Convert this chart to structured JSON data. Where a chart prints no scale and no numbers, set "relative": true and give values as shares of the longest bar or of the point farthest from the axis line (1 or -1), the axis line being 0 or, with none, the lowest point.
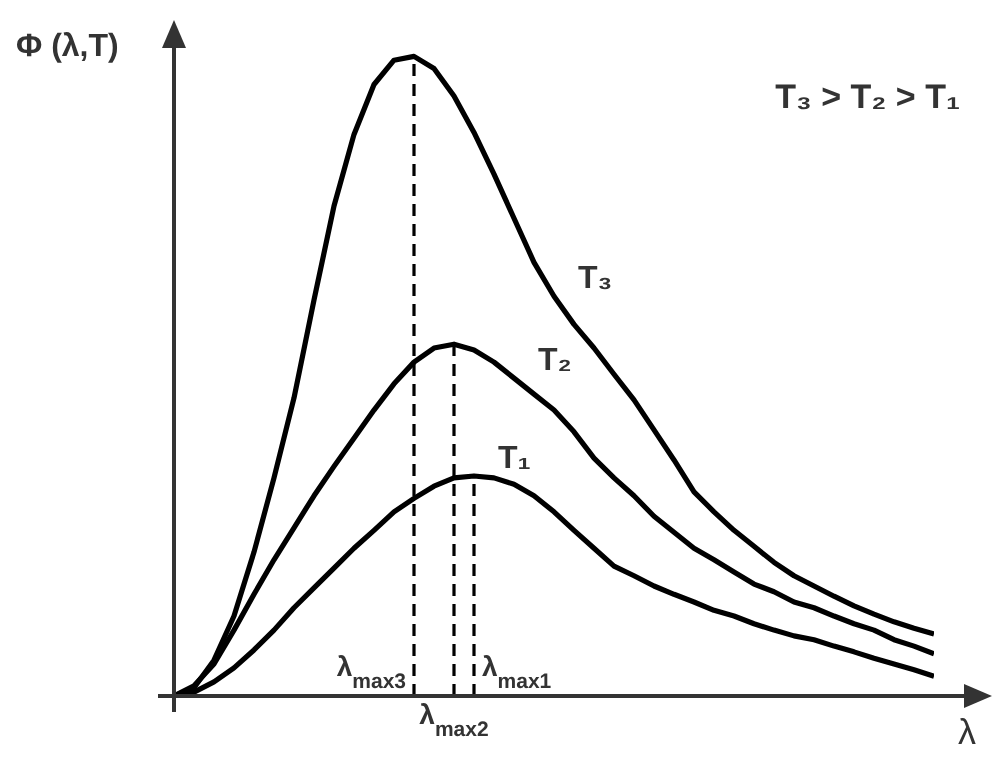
{
  "chart_data": {
    "type": "line",
    "relative": true,
    "ylabel": "Φ (λ,T)",
    "xlabel": "λ",
    "annotations": [
      "T₃ > T₂ > T₁",
      "λ$_{max3}$",
      "λ$_{max2}$",
      "λ$_{max1}$"
    ],
    "categories": [
      null,
      null,
      null,
      null,
      null,
      null,
      null,
      null,
      null,
      null,
      null,
      null,
      null,
      null,
      null,
      null,
      null,
      null,
      null,
      null,
      null,
      null,
      null,
      null,
      null,
      null,
      null,
      null,
      null,
      null,
      null,
      null,
      null,
      null,
      null,
      null,
      null,
      null,
      null
    ],
    "series": [
      {
        "name": "T₃",
        "color": "#000000",
        "values": [
          0,
          0.013,
          0.056,
          0.125,
          0.225,
          0.341,
          0.466,
          0.619,
          0.766,
          0.878,
          0.956,
          0.994,
          1,
          0.981,
          0.938,
          0.881,
          0.816,
          0.747,
          0.678,
          0.625,
          0.581,
          0.544,
          0.503,
          0.463,
          0.416,
          0.369,
          0.319,
          0.288,
          0.259,
          0.234,
          0.209,
          0.188,
          0.172,
          0.156,
          0.141,
          0.128,
          0.116,
          0.106,
          0.097
        ]
      },
      {
        "name": "T₂",
        "color": "#000000",
        "values": [
          0,
          0.016,
          0.05,
          0.103,
          0.159,
          0.213,
          0.263,
          0.313,
          0.359,
          0.403,
          0.447,
          0.488,
          0.522,
          0.544,
          0.55,
          0.541,
          0.522,
          0.497,
          0.472,
          0.447,
          0.413,
          0.372,
          0.341,
          0.313,
          0.281,
          0.256,
          0.231,
          0.213,
          0.194,
          0.175,
          0.163,
          0.147,
          0.138,
          0.125,
          0.113,
          0.103,
          0.088,
          0.078,
          0.066
        ]
      },
      {
        "name": "T₁",
        "color": "#000000",
        "values": [
          0,
          0.006,
          0.022,
          0.044,
          0.072,
          0.103,
          0.138,
          0.169,
          0.2,
          0.231,
          0.259,
          0.288,
          0.309,
          0.328,
          0.341,
          0.344,
          0.341,
          0.331,
          0.313,
          0.288,
          0.259,
          0.231,
          0.203,
          0.188,
          0.172,
          0.159,
          0.147,
          0.134,
          0.125,
          0.113,
          0.103,
          0.094,
          0.088,
          0.078,
          0.069,
          0.059,
          0.05,
          0.041,
          0.031
        ]
      }
    ]
  }
}
